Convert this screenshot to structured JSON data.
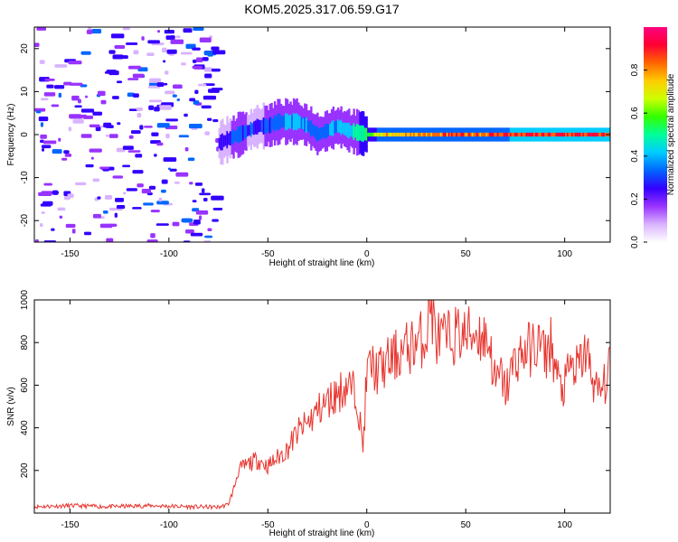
{
  "chart_data": [
    {
      "type": "heatmap",
      "title": "KOM5.2025.317.06.59.G17",
      "xlabel": "Height of straight line (km)",
      "ylabel": "Frequency (Hz)",
      "xlim": [
        -168,
        123
      ],
      "ylim": [
        -25,
        25
      ],
      "xticks": [
        "-150",
        "-100",
        "-50",
        "0",
        "50",
        "100"
      ],
      "yticks": [
        "-20",
        "-10",
        "0",
        "10",
        "20"
      ],
      "colorbar": {
        "label": "Normalized spectral amplitude",
        "range": [
          0,
          1
        ],
        "ticks": [
          "0.0",
          "0.2",
          "0.4",
          "0.6",
          "0.8"
        ],
        "colormap": [
          "#ffffff",
          "#d9b3ff",
          "#9933ff",
          "#3300ff",
          "#0066ff",
          "#00ccff",
          "#00ff99",
          "#33ff00",
          "#ccff00",
          "#ffcc00",
          "#ff6600",
          "#ff0033",
          "#ff0080"
        ]
      },
      "ridge_profile": {
        "x": [
          -75,
          -70,
          -65,
          -60,
          -55,
          -50,
          -45,
          -40,
          -35,
          -30,
          -25,
          -20,
          -15,
          -10,
          -5,
          0,
          5,
          10,
          20,
          40,
          60,
          80,
          100,
          123
        ],
        "y": [
          -2,
          -1,
          0,
          1,
          2,
          2,
          3,
          3,
          3,
          2,
          0,
          1,
          2,
          1,
          0.5,
          0,
          0,
          0,
          0,
          0,
          0,
          0,
          0,
          0
        ],
        "amplitude": [
          0.25,
          0.3,
          0.35,
          0.3,
          0.3,
          0.32,
          0.35,
          0.4,
          0.45,
          0.38,
          0.35,
          0.4,
          0.42,
          0.45,
          0.5,
          0.6,
          0.75,
          0.8,
          0.85,
          0.9,
          0.92,
          0.95,
          0.95,
          0.95
        ]
      },
      "noise_region": [
        -168,
        -75
      ]
    },
    {
      "type": "line",
      "title": "",
      "xlabel": "Height of straight line (km)",
      "ylabel": "SNR (v/v)",
      "xlim": [
        -168,
        123
      ],
      "ylim": [
        0,
        1000
      ],
      "xticks": [
        "-150",
        "-100",
        "-50",
        "0",
        "50",
        "100"
      ],
      "yticks": [
        "200",
        "400",
        "600",
        "800",
        "1000"
      ],
      "series": [
        {
          "name": "SNR",
          "color": "#e8342e",
          "x": [
            -168,
            -150,
            -130,
            -110,
            -90,
            -75,
            -70,
            -67,
            -65,
            -60,
            -55,
            -50,
            -45,
            -40,
            -35,
            -30,
            -25,
            -20,
            -15,
            -10,
            -5,
            -2,
            0,
            2,
            5,
            10,
            15,
            20,
            25,
            30,
            32,
            35,
            40,
            45,
            50,
            55,
            60,
            62,
            65,
            68,
            70,
            75,
            80,
            85,
            88,
            90,
            93,
            95,
            98,
            100,
            103,
            105,
            108,
            110,
            112,
            115,
            117,
            120,
            123
          ],
          "y": [
            30,
            35,
            30,
            35,
            30,
            28,
            40,
            120,
            200,
            230,
            250,
            220,
            260,
            300,
            380,
            420,
            480,
            520,
            560,
            600,
            560,
            300,
            650,
            700,
            660,
            700,
            740,
            770,
            800,
            830,
            1000,
            820,
            810,
            840,
            830,
            850,
            820,
            800,
            600,
            650,
            570,
            720,
            760,
            780,
            800,
            730,
            800,
            690,
            580,
            590,
            700,
            660,
            700,
            760,
            720,
            600,
            560,
            600,
            680
          ]
        }
      ]
    }
  ]
}
